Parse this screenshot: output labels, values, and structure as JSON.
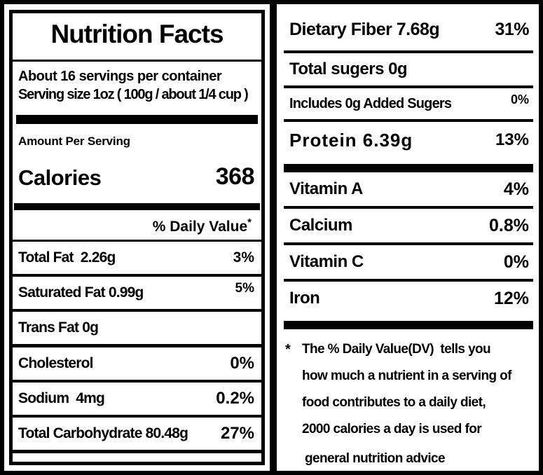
{
  "colors": {
    "ink": "#000000",
    "paper": "#ffffff"
  },
  "title": "Nutrition Facts",
  "servings_per_container": "About 16 servings per container",
  "serving_size": "Serving size 1oz ( 100g / about 1/4 cup )",
  "amount_per_serving": "Amount Per Serving",
  "calories": {
    "label": "Calories",
    "value": "368"
  },
  "daily_value_header": {
    "text": "% Daily Value",
    "asterisk": "*"
  },
  "left_rows": [
    {
      "label": "Total Fat  2.26g",
      "value": "3%"
    },
    {
      "label": "Saturated Fat 0.99g",
      "value": "5%"
    },
    {
      "label": "Trans Fat 0g",
      "value": ""
    },
    {
      "label": "Cholesterol",
      "value": "0%"
    },
    {
      "label": "Sodium  4mg",
      "value": "0.2%"
    },
    {
      "label": "Total Carbohydrate 80.48g",
      "value": "27%"
    }
  ],
  "right_rows_top": [
    {
      "label": "Dietary Fiber 7.68g",
      "value": "31%"
    },
    {
      "label": "Total sugers 0g",
      "value": ""
    },
    {
      "label": "Includes 0g Added Sugers",
      "value": "0%"
    },
    {
      "label": "Protein 6.39g",
      "value": "13%"
    }
  ],
  "right_rows_vitamins": [
    {
      "label": "Vitamin A",
      "value": "4%"
    },
    {
      "label": "Calcium",
      "value": "0.8%"
    },
    {
      "label": "Vitamin C",
      "value": "0%"
    },
    {
      "label": "Iron",
      "value": "12%"
    }
  ],
  "footnote": {
    "marker": "*",
    "lines": [
      "The % Daily Value(DV)  tells you",
      "how much a nutrient in a serving of",
      "food contributes to a daily diet,",
      "2000 calories a day is used for",
      "general nutrition advice"
    ]
  }
}
